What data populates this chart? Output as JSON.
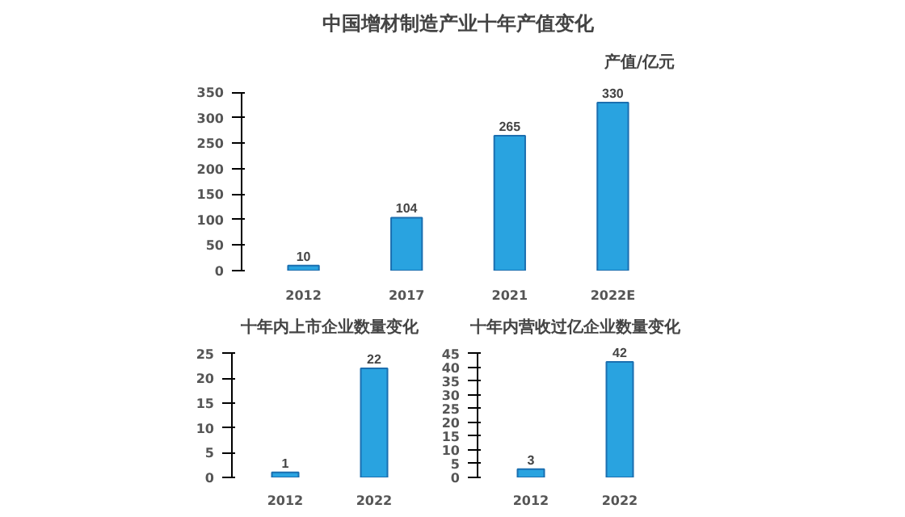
{
  "chart_data": [
    {
      "type": "bar",
      "title": "中国增材制造产业十年产值变化",
      "ylabel": "产值/亿元",
      "categories": [
        "2012",
        "2017",
        "2021",
        "2022E"
      ],
      "values": [
        10,
        104,
        265,
        330
      ],
      "color": "#29a3e0",
      "ylim": [
        0,
        350
      ],
      "yticks": [
        0,
        50,
        100,
        150,
        200,
        250,
        300,
        350
      ],
      "data_labels": true,
      "grid": false
    },
    {
      "type": "bar",
      "title": "十年内上市企业数量变化",
      "categories": [
        "2012",
        "2022"
      ],
      "values": [
        1,
        22
      ],
      "color": "#29a3e0",
      "ylim": [
        0,
        25
      ],
      "yticks": [
        0,
        5,
        10,
        15,
        20,
        25
      ],
      "data_labels": true,
      "grid": false
    },
    {
      "type": "bar",
      "title": "十年内营收过亿企业数量变化",
      "categories": [
        "2012",
        "2022"
      ],
      "values": [
        3,
        42
      ],
      "color": "#29a3e0",
      "ylim": [
        0,
        45
      ],
      "yticks": [
        0,
        5,
        10,
        15,
        20,
        25,
        30,
        35,
        40,
        45
      ],
      "data_labels": true,
      "grid": false
    }
  ]
}
